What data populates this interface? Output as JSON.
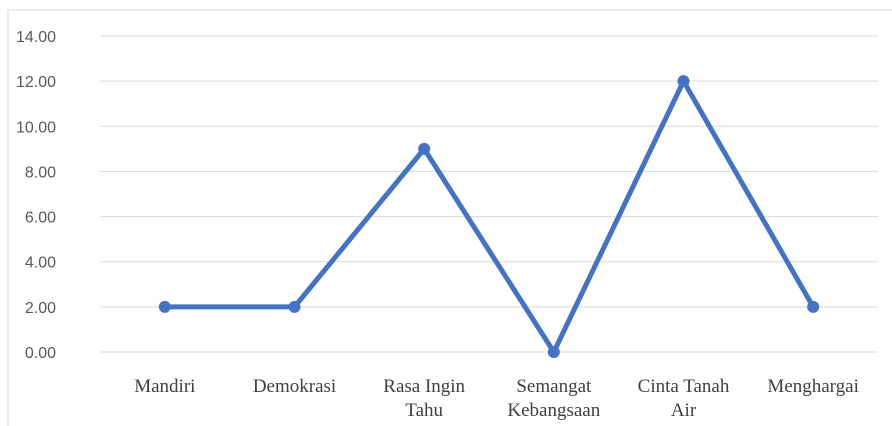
{
  "chart_data": {
    "type": "line",
    "title": "",
    "xlabel": "",
    "ylabel": "",
    "categories": [
      [
        "Mandiri"
      ],
      [
        "Demokrasi"
      ],
      [
        "Rasa Ingin",
        "Tahu"
      ],
      [
        "Semangat",
        "Kebangsaan"
      ],
      [
        "Cinta Tanah",
        "Air"
      ],
      [
        "Menghargai"
      ]
    ],
    "series": [
      {
        "values": [
          2,
          2,
          9,
          0,
          12,
          2
        ],
        "color": "#4472C4"
      }
    ],
    "ylim": [
      0,
      14
    ],
    "yticks": [
      "0.00",
      "2.00",
      "4.00",
      "6.00",
      "8.00",
      "10.00",
      "12.00",
      "14.00"
    ],
    "grid": true,
    "legend": "none"
  }
}
